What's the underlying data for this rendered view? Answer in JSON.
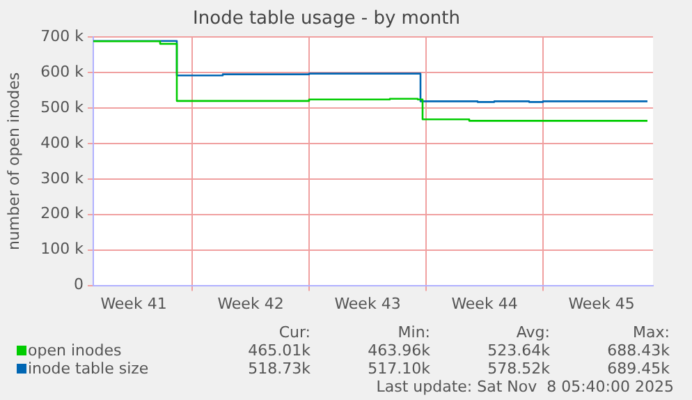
{
  "chart_data": {
    "type": "step",
    "title": "Inode table usage - by month",
    "ylabel": "number of open inodes",
    "xlim": [
      "2025-10-06T02:00",
      "2025-11-08T14:00"
    ],
    "xticks": [
      {
        "value": "2025-10-08T12:00",
        "label": "Week 41"
      },
      {
        "value": "2025-10-12T00:00",
        "label": null
      },
      {
        "value": "2025-10-15T12:00",
        "label": "Week 42"
      },
      {
        "value": "2025-10-19T00:00",
        "label": null
      },
      {
        "value": "2025-10-22T12:00",
        "label": "Week 43"
      },
      {
        "value": "2025-10-26T00:00",
        "label": null
      },
      {
        "value": "2025-10-29T12:00",
        "label": "Week 44"
      },
      {
        "value": "2025-11-02T00:00",
        "label": null
      },
      {
        "value": "2025-11-05T12:00",
        "label": "Week 45"
      }
    ],
    "ylim": [
      0,
      700000
    ],
    "yticks": [
      0,
      {
        "value": 100000,
        "label": "100 k"
      },
      {
        "value": 200000,
        "label": "200 k"
      },
      {
        "value": 300000,
        "label": "300 k"
      },
      {
        "value": 400000,
        "label": "400 k"
      },
      {
        "value": 500000,
        "label": "500 k"
      },
      {
        "value": 600000,
        "label": "600 k"
      },
      {
        "value": 700000,
        "label": "700 k"
      }
    ],
    "grid": true,
    "legend": "bottom",
    "marker": "none",
    "line_style": "solid",
    "series": [
      {
        "name": "open inodes",
        "color": "#00cc00",
        "x": [
          "2025-10-06T02:00",
          "2025-10-10T02:00",
          "2025-10-11T02:00",
          "2025-10-19T00:00",
          "2025-10-23T20:00",
          "2025-10-25T12:00",
          "2025-10-25T19:00",
          "2025-10-28T14:00",
          "2025-11-08T06:00"
        ],
        "values": [
          688000,
          681000,
          520000,
          524000,
          526000,
          524000,
          468000,
          464000,
          464000
        ]
      },
      {
        "name": "inode table size",
        "color": "#0066b3",
        "x": [
          "2025-10-06T02:00",
          "2025-10-11T02:00",
          "2025-10-13T20:00",
          "2025-10-19T00:00",
          "2025-10-25T16:00",
          "2025-10-29T02:00",
          "2025-10-30T02:00",
          "2025-11-01T04:00",
          "2025-11-02T00:00",
          "2025-11-08T06:00"
        ],
        "values": [
          689000,
          592000,
          595000,
          597000,
          519000,
          517000,
          519000,
          517000,
          519000,
          519000
        ]
      }
    ],
    "annotations": [
      "Cur:",
      "Min:",
      "Avg:",
      "Max:",
      "465.01k",
      "463.96k",
      "523.64k",
      "688.43k",
      "518.73k",
      "517.10k",
      "578.52k",
      "689.45k",
      "Last update: Sat Nov  8 05:40:00 2025"
    ]
  }
}
